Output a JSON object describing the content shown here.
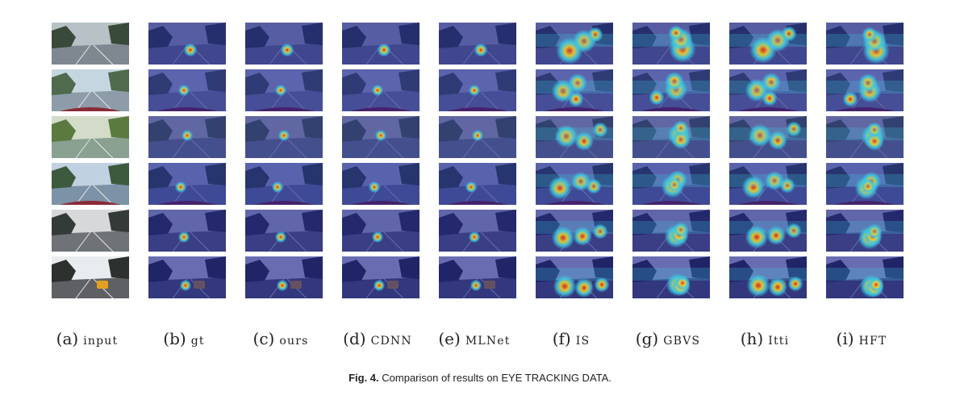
{
  "columns": [
    {
      "tag": "(a)",
      "name": "input"
    },
    {
      "tag": "(b)",
      "name": "gt"
    },
    {
      "tag": "(c)",
      "name": "ours"
    },
    {
      "tag": "(d)",
      "name": "CDNN"
    },
    {
      "tag": "(e)",
      "name": "MLNet"
    },
    {
      "tag": "(f)",
      "name": "IS"
    },
    {
      "tag": "(g)",
      "name": "GBVS"
    },
    {
      "tag": "(h)",
      "name": "Itti"
    },
    {
      "tag": "(i)",
      "name": "HFT"
    }
  ],
  "rows": 6,
  "caption": {
    "fig_label": "Fig. 4.",
    "text": "Comparison of results on EYE TRACKING DATA."
  },
  "colors": {
    "heatmap_low": "#1a1f8c",
    "heatmap_mid": "#3fc7e0",
    "heatmap_high": "#d62c1a"
  }
}
